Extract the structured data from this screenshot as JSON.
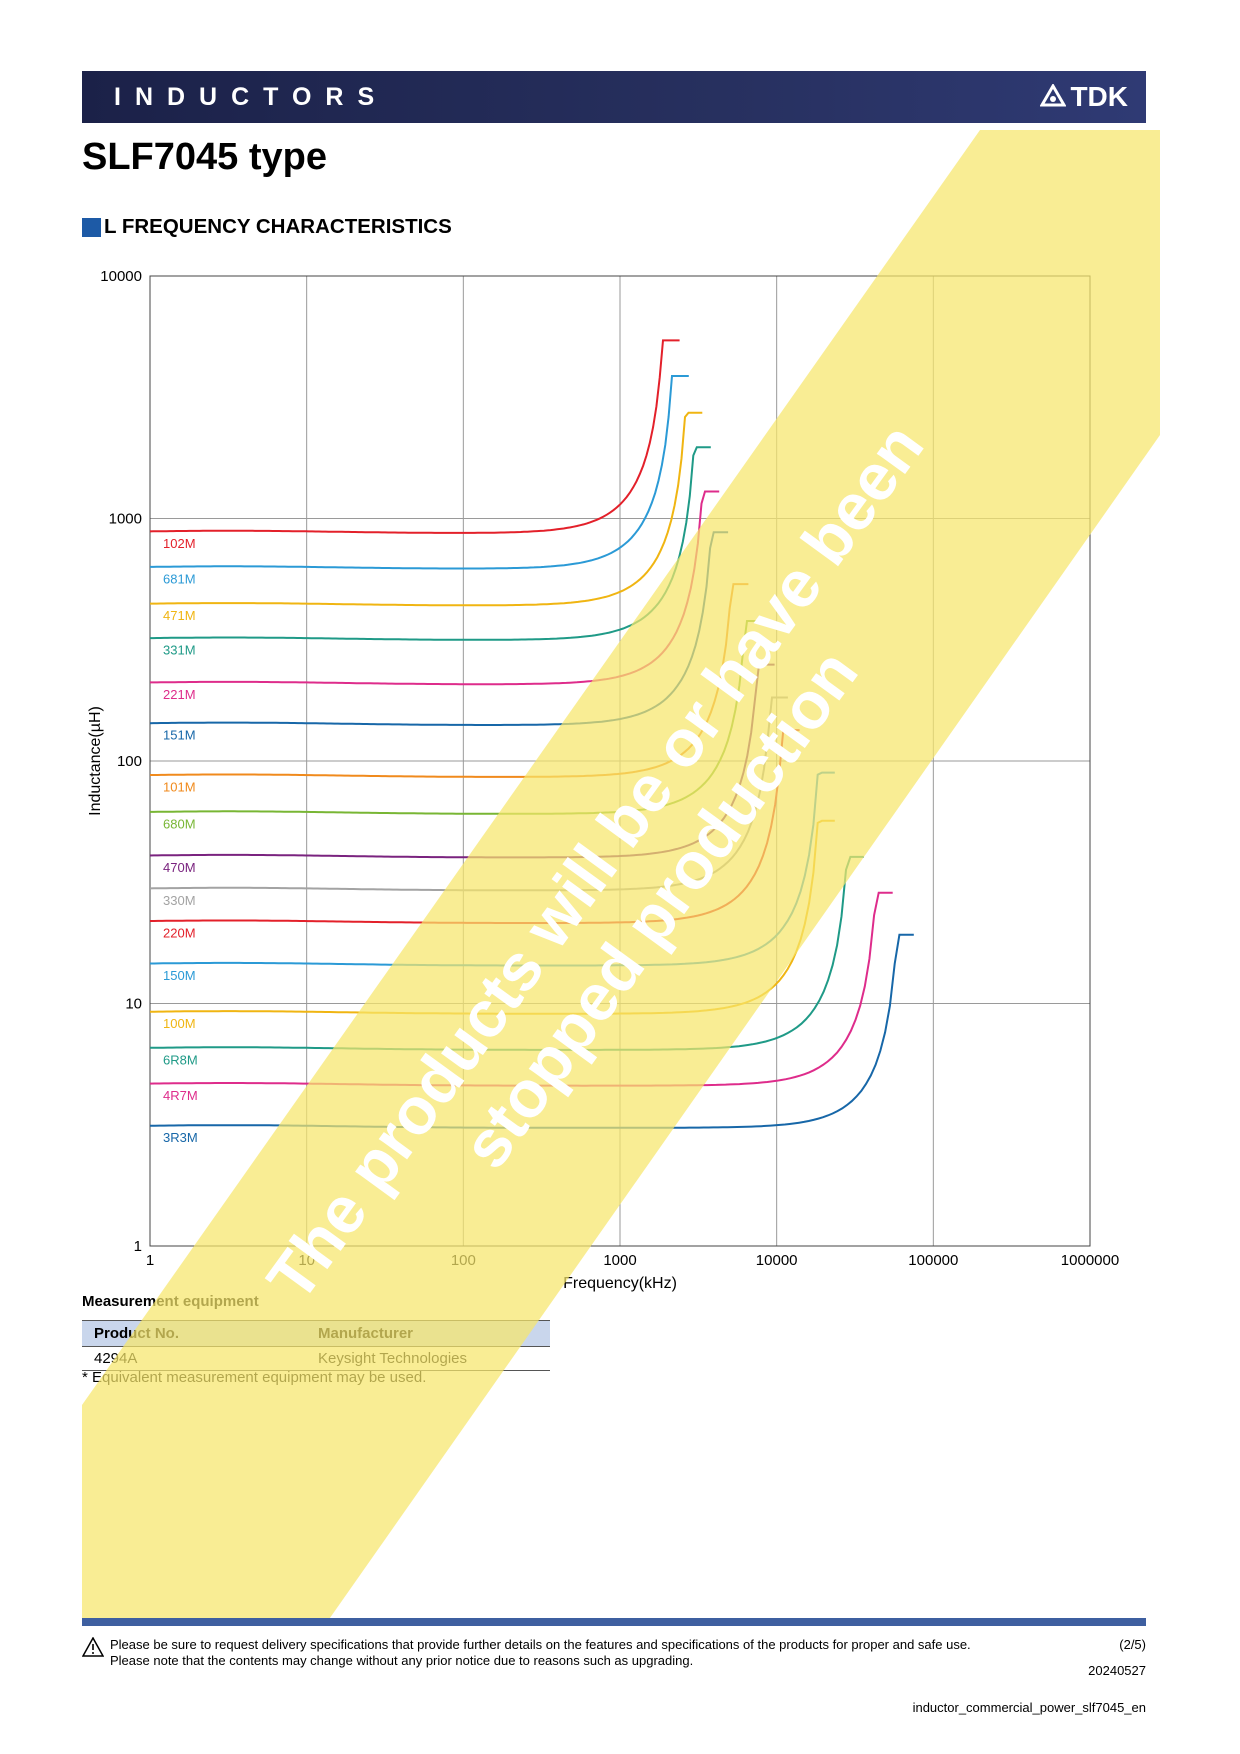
{
  "header": {
    "title": "INDUCTORS",
    "brand": "TDK"
  },
  "page_title": "SLF7045 type",
  "section_title": "L FREQUENCY CHARACTERISTICS",
  "watermark": {
    "line1": "The products will be or have been",
    "line2": "stopped production"
  },
  "chart_data": {
    "type": "line",
    "title": "",
    "xlabel": "Frequency(kHz)",
    "ylabel": "Inductance(µH)",
    "x_scale": "log",
    "y_scale": "log",
    "xlim": [
      1,
      1000000
    ],
    "ylim": [
      1,
      10000
    ],
    "x_ticks": [
      "1",
      "10",
      "100",
      "1000",
      "10000",
      "100000",
      "1000000"
    ],
    "y_ticks": [
      "1",
      "10",
      "100",
      "1000",
      "10000"
    ],
    "grid": true,
    "series": [
      {
        "name": "102M",
        "color": "#e3202a",
        "L": 890,
        "fend": 2400
      },
      {
        "name": "681M",
        "color": "#2b9ad6",
        "L": 635,
        "fend": 2750
      },
      {
        "name": "471M",
        "color": "#f0b512",
        "L": 448,
        "fend": 3350
      },
      {
        "name": "331M",
        "color": "#1f9a87",
        "L": 323,
        "fend": 3800
      },
      {
        "name": "221M",
        "color": "#de2c8b",
        "L": 212,
        "fend": 4300
      },
      {
        "name": "151M",
        "color": "#1767a8",
        "L": 144,
        "fend": 4900
      },
      {
        "name": "101M",
        "color": "#f08a1c",
        "L": 88,
        "fend": 6600
      },
      {
        "name": "680M",
        "color": "#78b634",
        "L": 62,
        "fend": 8100
      },
      {
        "name": "470M",
        "color": "#7a237f",
        "L": 41,
        "fend": 9700
      },
      {
        "name": "330M",
        "color": "#a3a3a3",
        "L": 30,
        "fend": 11800
      },
      {
        "name": "220M",
        "color": "#e3202a",
        "L": 22,
        "fend": 14000
      },
      {
        "name": "150M",
        "color": "#2b9ad6",
        "L": 14.7,
        "fend": 23500
      },
      {
        "name": "100M",
        "color": "#f0b512",
        "L": 9.3,
        "fend": 23500
      },
      {
        "name": "6R8M",
        "color": "#1f9a87",
        "L": 6.6,
        "fend": 36000
      },
      {
        "name": "4R7M",
        "color": "#de2c8b",
        "L": 4.7,
        "fend": 55000
      },
      {
        "name": "3R3M",
        "color": "#1767a8",
        "L": 3.15,
        "fend": 75000
      }
    ]
  },
  "measurement": {
    "title": "Measurement equipment",
    "headers": [
      "Product No.",
      "Manufacturer"
    ],
    "rows": [
      [
        "4294A",
        "Keysight Technologies"
      ]
    ],
    "note": "*   Equivalent measurement equipment may be used."
  },
  "footer": {
    "line1": "Please be sure to request delivery specifications that provide further details on the features and specifications of the products for proper and safe use.",
    "line2": "Please note that the contents may change without any prior notice due to reasons such as upgrading.",
    "page": "(2/5)",
    "date": "20240527",
    "doc": "inductor_commercial_power_slf7045_en"
  }
}
